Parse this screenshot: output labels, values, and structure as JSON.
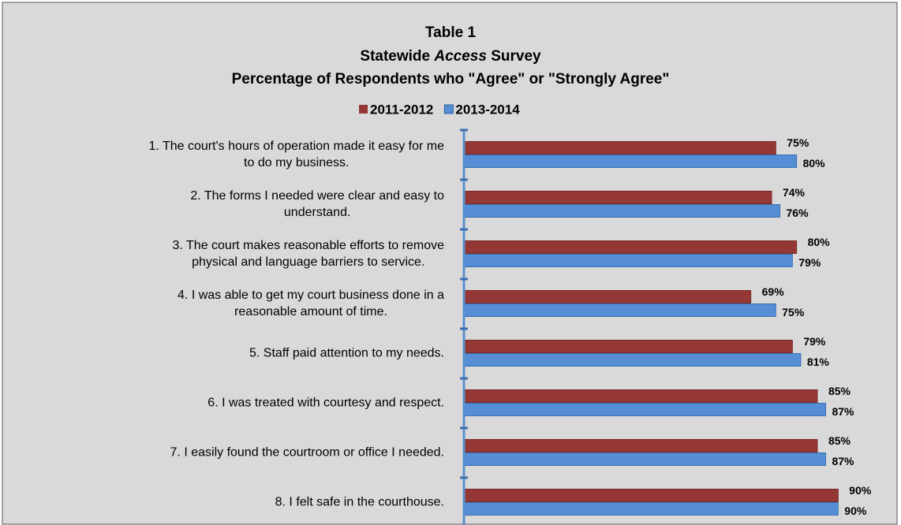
{
  "chart_data": {
    "type": "hbar",
    "title": "Table 1",
    "subtitle": [
      "Statewide",
      "Access",
      "Survey"
    ],
    "subtitle_italic": [
      false,
      true,
      false
    ],
    "subtitle2": "Percentage of Respondents who \"Agree\" or \"Strongly Agree\"",
    "categories": [
      [
        "1.  The court's hours of operation made it easy for me",
        "to do my business."
      ],
      [
        "2.  The forms I needed were clear and easy to",
        "understand."
      ],
      [
        "3.  The court makes reasonable efforts to remove",
        "physical and language barriers to service."
      ],
      [
        "4.  I was able to get my court business done in a",
        "reasonable amount of time."
      ],
      [
        "5.  Staff paid attention to my needs."
      ],
      [
        "6.  I was treated with courtesy and respect."
      ],
      [
        "7.  I easily found the courtroom or office I needed."
      ],
      [
        "8.  I felt safe in the courthouse."
      ]
    ],
    "series": [
      {
        "name": "2011-2012",
        "color": "#953735",
        "values": [
          75,
          74,
          80,
          69,
          79,
          85,
          85,
          90
        ],
        "value_labels": [
          "75%",
          "74%",
          "80%",
          "69%",
          "79%",
          "85%",
          "85%",
          "90%"
        ]
      },
      {
        "name": "2013-2014",
        "color": "#558ed5",
        "values": [
          80,
          76,
          79,
          75,
          81,
          87,
          87,
          90
        ],
        "value_labels": [
          "80%",
          "76%",
          "79%",
          "75%",
          "81%",
          "87%",
          "87%",
          "90%"
        ]
      }
    ],
    "xlim": [
      0,
      100
    ],
    "legend": "top"
  }
}
